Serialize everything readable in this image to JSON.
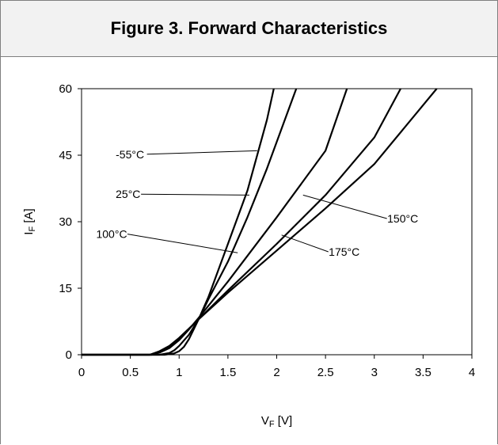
{
  "chart_data": {
    "type": "line",
    "title": "Figure 3. Forward Characteristics",
    "xlabel": {
      "main": "V",
      "sub": "F",
      "unit": " [V]"
    },
    "ylabel": {
      "main": "I",
      "sub": "F",
      "unit": " [A]"
    },
    "xlim": [
      0,
      4
    ],
    "ylim": [
      0,
      60
    ],
    "xticks": [
      0,
      0.5,
      1,
      1.5,
      2,
      2.5,
      3,
      3.5,
      4
    ],
    "xtick_labels": [
      "0",
      "0.5",
      "1",
      "1.5",
      "2",
      "2.5",
      "3",
      "3.5",
      "4"
    ],
    "yticks": [
      0,
      15,
      30,
      45,
      60
    ],
    "ytick_labels": [
      "0",
      "15",
      "30",
      "45",
      "60"
    ],
    "grid": false,
    "series": [
      {
        "name": "-55°C",
        "color": "#000000",
        "x": [
          0,
          0.85,
          0.95,
          1.0,
          1.05,
          1.1,
          1.2,
          1.3,
          1.5,
          1.7,
          1.9,
          1.97
        ],
        "y": [
          0,
          0,
          0.3,
          0.8,
          1.8,
          3.5,
          8,
          13,
          25,
          37,
          53,
          60
        ]
      },
      {
        "name": "25°C",
        "color": "#000000",
        "x": [
          0,
          0.8,
          0.9,
          0.95,
          1.0,
          1.1,
          1.2,
          1.3,
          1.5,
          1.7,
          1.9,
          2.0,
          2.2
        ],
        "y": [
          0,
          0,
          0.4,
          1.0,
          2.0,
          4.5,
          8,
          12.5,
          21,
          31,
          42,
          48,
          60
        ]
      },
      {
        "name": "100°C",
        "color": "#000000",
        "x": [
          0,
          0.72,
          0.8,
          0.9,
          1.0,
          1.1,
          1.2,
          1.5,
          2.0,
          2.5,
          2.72
        ],
        "y": [
          0,
          0,
          0.5,
          1.5,
          3.3,
          5.7,
          8.3,
          16.5,
          31,
          46,
          60
        ]
      },
      {
        "name": "150°C",
        "color": "#000000",
        "x": [
          0,
          0.7,
          0.8,
          0.9,
          1.0,
          1.1,
          1.2,
          1.5,
          2.0,
          2.5,
          3.0,
          3.27
        ],
        "y": [
          0,
          0,
          0.7,
          1.9,
          3.6,
          5.8,
          8.0,
          14.5,
          25,
          36,
          49,
          60
        ]
      },
      {
        "name": "175°C",
        "color": "#000000",
        "x": [
          0,
          0.7,
          0.8,
          0.9,
          1.0,
          1.1,
          1.2,
          1.5,
          2.0,
          2.5,
          3.0,
          3.64
        ],
        "y": [
          0,
          0,
          0.8,
          2.0,
          3.8,
          5.9,
          8.0,
          14.0,
          23.5,
          33,
          43,
          60
        ]
      }
    ],
    "annotations": [
      {
        "label": "-55°C",
        "series": 0,
        "text_x": 0.35,
        "text_y": 44.5,
        "point_x": 1.8,
        "point_y": 46,
        "side": "left"
      },
      {
        "label": "25°C",
        "series": 1,
        "text_x": 0.35,
        "text_y": 35.5,
        "point_x": 1.72,
        "point_y": 36,
        "side": "left"
      },
      {
        "label": "100°C",
        "series": 2,
        "text_x": 0.15,
        "text_y": 26.5,
        "point_x": 1.6,
        "point_y": 23,
        "side": "left"
      },
      {
        "label": "150°C",
        "series": 3,
        "text_x": 3.45,
        "text_y": 30,
        "point_x": 2.27,
        "point_y": 36,
        "side": "right"
      },
      {
        "label": "175°C",
        "series": 4,
        "text_x": 2.85,
        "text_y": 22.5,
        "point_x": 2.05,
        "point_y": 27,
        "side": "right"
      }
    ]
  }
}
